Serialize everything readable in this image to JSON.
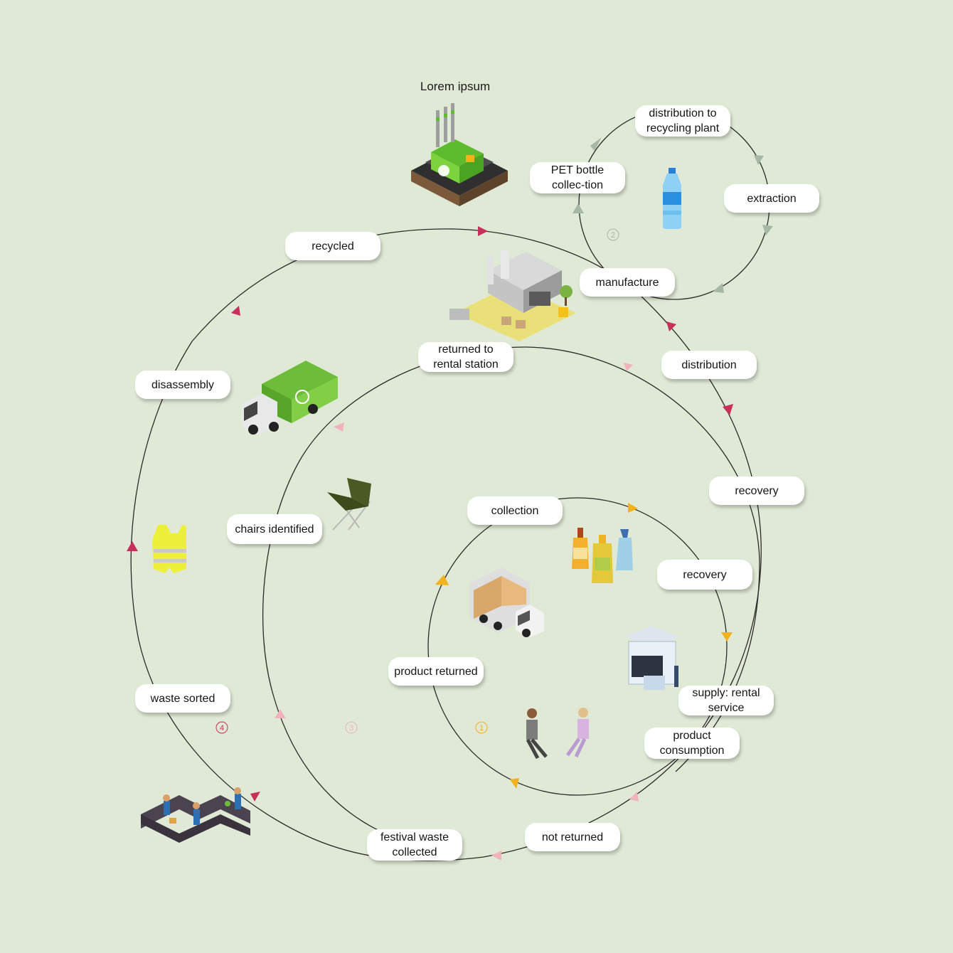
{
  "title": "Lorem ipsum",
  "colors": {
    "background": "#e0e9d6",
    "line": "#2a2a2a",
    "loop1_arrow": "#f2b21b",
    "loop2_arrow": "#a6b7a6",
    "loop3_arrow": "#f0b3bd",
    "loop4_arrow": "#c8305c"
  },
  "loop_numbers": [
    "1",
    "2",
    "3",
    "4"
  ],
  "labels": {
    "distribution_to_recycling_plant": "distribution to recycling plant",
    "pet_bottle_collection": "PET bottle collec-tion",
    "extraction": "extraction",
    "manufacture": "manufacture",
    "recycled": "recycled",
    "distribution": "distribution",
    "returned_to_rental_station": "returned to rental station",
    "disassembly": "disassembly",
    "recovery_outer": "recovery",
    "chairs_identified": "chairs identified",
    "collection": "collection",
    "recovery_inner": "recovery",
    "product_returned": "product returned",
    "supply_rental_service": "supply: rental service",
    "waste_sorted": "waste sorted",
    "product_consumption": "product consumption",
    "not_returned": "not returned",
    "festival_waste_collected": "festival waste collected"
  },
  "icons": [
    "recycling-factory-icon",
    "water-bottle-icon",
    "manufacturing-plant-icon",
    "garbage-truck-icon",
    "folding-chair-icon",
    "safety-vest-icon",
    "cleaning-bottles-icon",
    "delivery-truck-icon",
    "rental-kiosk-icon",
    "seated-people-icon",
    "sorting-conveyor-icon"
  ]
}
